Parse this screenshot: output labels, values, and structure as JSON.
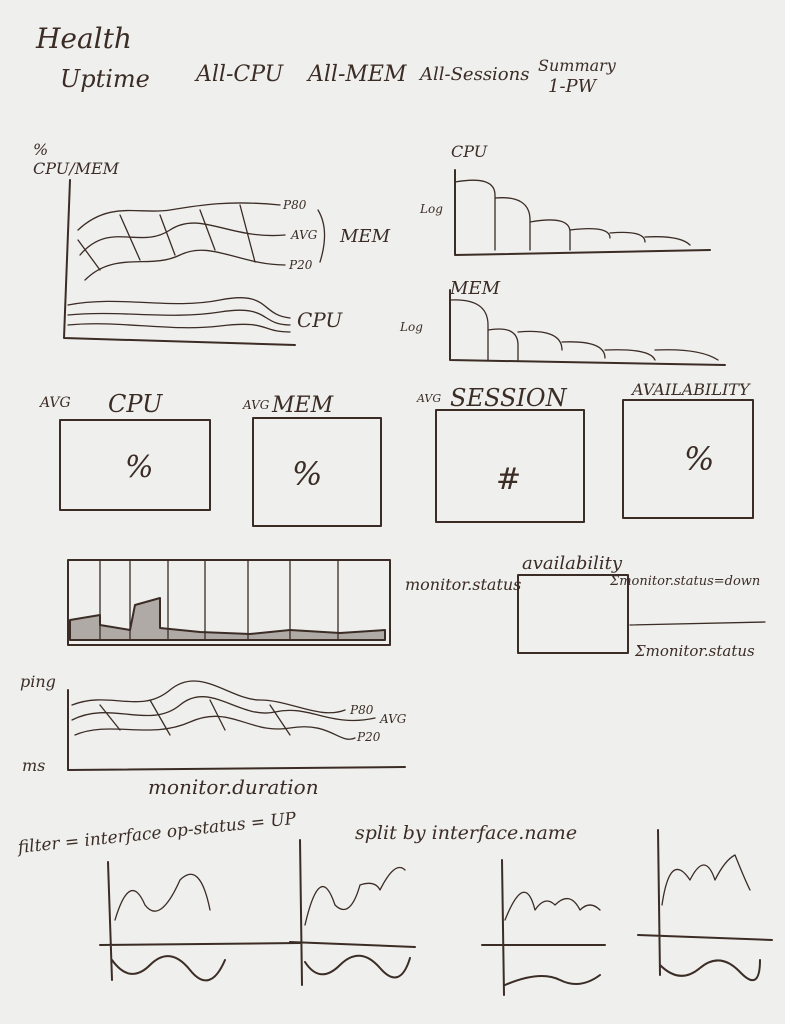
{
  "header": {
    "title": "Health"
  },
  "tabs": [
    {
      "label": "Uptime"
    },
    {
      "label": "All-CPU"
    },
    {
      "label": "All-MEM"
    },
    {
      "label": "All-Sessions"
    },
    {
      "label": "Summary"
    }
  ],
  "tab_sublabel": "1-PW",
  "usage_chart": {
    "ylabel": "% CPU/MEM",
    "p80": "P80",
    "avg": "AVG",
    "p20": "P20",
    "mem": "MEM",
    "cpu": "CPU"
  },
  "cpu_hist": {
    "title": "CPU",
    "ylabel": "Log"
  },
  "mem_hist": {
    "title": "MEM",
    "ylabel": "Log"
  },
  "tiles": [
    {
      "prefix": "AVG",
      "label": "CPU",
      "value": "%"
    },
    {
      "prefix": "AVG",
      "label": "MEM",
      "value": "%"
    },
    {
      "prefix": "AVG",
      "label": "SESSION",
      "value": "#"
    },
    {
      "prefix": "",
      "label": "AVAILABILITY",
      "value": "%"
    }
  ],
  "monitor": {
    "label": "monitor.status"
  },
  "availability": {
    "title": "availability",
    "numerator": "Σmonitor.status=down",
    "denominator": "Σmonitor.status"
  },
  "ping_chart": {
    "ylabel": "ping",
    "yunit": "ms",
    "p80": "P80",
    "avg": "AVG",
    "p20": "P20",
    "xlabel": "monitor.duration"
  },
  "interfaces": {
    "filter": "filter = interface op-status = UP",
    "split": "split by interface.name"
  },
  "colors": {
    "ink": "#3b2c25",
    "paper": "#efefed"
  }
}
